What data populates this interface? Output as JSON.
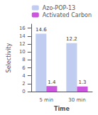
{
  "chart_data": {
    "type": "bar",
    "xlabel": "Time",
    "ylabel": "Selectivity",
    "categories": [
      "5 min",
      "30 min"
    ],
    "series": [
      {
        "name": "Azo-POP-13",
        "color": "#c0ccf0",
        "values": [
          14.6,
          12.2
        ]
      },
      {
        "name": "Activated Carbon",
        "color": "#cc55dd",
        "values": [
          1.4,
          1.3
        ]
      }
    ],
    "ylim": [
      0,
      17
    ],
    "yticks": [
      0,
      2,
      4,
      6,
      8,
      10,
      12,
      14,
      16
    ],
    "data_labels": true,
    "legend": "upper right",
    "grid": false
  }
}
